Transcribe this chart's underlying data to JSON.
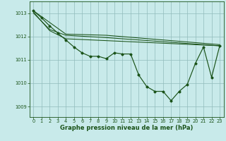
{
  "bg_color": "#c8eaea",
  "grid_color": "#90bcbc",
  "line_color": "#1a5218",
  "xlabel": "Graphe pression niveau de la mer (hPa)",
  "xlabel_fontsize": 6.0,
  "tick_fontsize": 4.8,
  "ylim": [
    1008.55,
    1013.5
  ],
  "xlim": [
    -0.5,
    23.5
  ],
  "yticks": [
    1009,
    1010,
    1011,
    1012,
    1013
  ],
  "xticks": [
    0,
    1,
    2,
    3,
    4,
    5,
    6,
    7,
    8,
    9,
    10,
    11,
    12,
    13,
    14,
    15,
    16,
    17,
    18,
    19,
    20,
    21,
    22,
    23
  ],
  "main_line_x": [
    0,
    1,
    2,
    3,
    4,
    5,
    6,
    7,
    8,
    9,
    10,
    11,
    12,
    13,
    14,
    15,
    16,
    17,
    18,
    19,
    20,
    21,
    22,
    23
  ],
  "main_line_y": [
    1013.1,
    1012.8,
    1012.45,
    1012.15,
    1011.85,
    1011.55,
    1011.3,
    1011.15,
    1011.15,
    1011.05,
    1011.3,
    1011.25,
    1011.25,
    1010.35,
    1009.85,
    1009.65,
    1009.65,
    1009.25,
    1009.65,
    1009.95,
    1010.85,
    1011.55,
    1010.25,
    1011.6
  ],
  "trend_lines": [
    {
      "x": [
        0,
        4,
        9,
        23
      ],
      "y": [
        1013.1,
        1012.1,
        1012.05,
        1011.65
      ]
    },
    {
      "x": [
        0,
        2,
        4,
        9,
        23
      ],
      "y": [
        1013.0,
        1012.3,
        1012.05,
        1011.95,
        1011.6
      ]
    },
    {
      "x": [
        0,
        2,
        4,
        23
      ],
      "y": [
        1013.05,
        1012.25,
        1011.9,
        1011.6
      ]
    }
  ]
}
